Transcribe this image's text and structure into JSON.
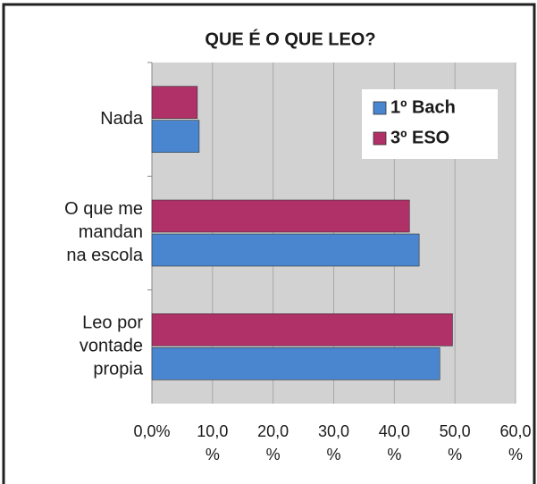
{
  "chart_data": {
    "type": "barh",
    "title": "QUE É O QUE LEO?",
    "categories": [
      "Nada",
      "O que me\nmandan\nna escola",
      "Leo por\nvontade\npropia"
    ],
    "series": [
      {
        "name": "1º Bach",
        "color": "#4a86d0",
        "values": [
          7.8,
          44.1,
          47.5
        ]
      },
      {
        "name": "3º ESO",
        "color": "#b03068",
        "values": [
          7.5,
          42.5,
          49.6
        ]
      }
    ],
    "xlim": [
      0,
      60
    ],
    "xticks": [
      {
        "value": 0,
        "label": "0,0%"
      },
      {
        "value": 10,
        "label": "10,0\n%"
      },
      {
        "value": 20,
        "label": "20,0\n%"
      },
      {
        "value": 30,
        "label": "30,0\n%"
      },
      {
        "value": 40,
        "label": "40,0\n%"
      },
      {
        "value": 50,
        "label": "50,0\n%"
      },
      {
        "value": 60,
        "label": "60,0\n%"
      }
    ],
    "grid": true,
    "legend": "upper right"
  }
}
